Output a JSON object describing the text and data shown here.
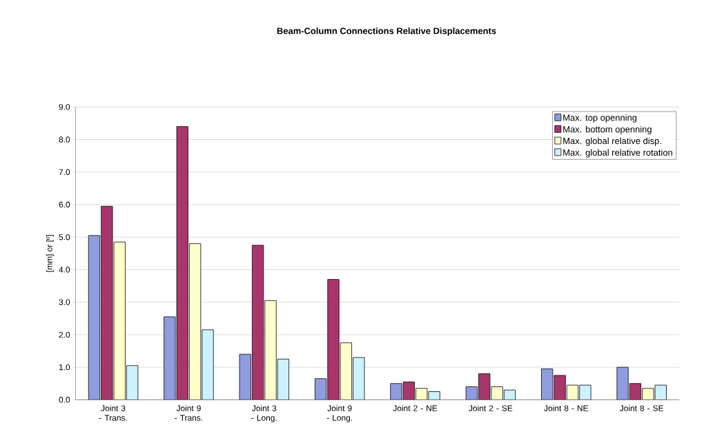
{
  "chart_data": {
    "type": "bar",
    "title": "Beam-Column Connections Relative Displacements",
    "ylabel": "[mm] or [º]",
    "categories": [
      "Joint 3 - Trans.",
      "Joint 9 - Trans.",
      "Joint 3 - Long.",
      "Joint 9 - Long.",
      "Joint 2 - NE",
      "Joint 2 - SE",
      "Joint 8 - NE",
      "Joint 8 - SE"
    ],
    "series": [
      {
        "name": "Max. top openning",
        "color": "#8f9ce0",
        "values": [
          5.05,
          2.55,
          1.4,
          0.65,
          0.5,
          0.4,
          0.95,
          1.0
        ]
      },
      {
        "name": "Max. bottom openning",
        "color": "#a8366a",
        "values": [
          5.95,
          8.4,
          4.75,
          3.7,
          0.55,
          0.8,
          0.75,
          0.5
        ]
      },
      {
        "name": "Max. global relative disp.",
        "color": "#ffffcc",
        "values": [
          4.85,
          4.8,
          3.05,
          1.75,
          0.35,
          0.4,
          0.45,
          0.35
        ]
      },
      {
        "name": "Max. global relative rotation",
        "color": "#ccf2ff",
        "values": [
          1.05,
          2.15,
          1.25,
          1.3,
          0.25,
          0.3,
          0.45,
          0.45
        ]
      }
    ],
    "ylim": [
      0,
      9
    ],
    "yticks": [
      {
        "value": 0,
        "label": "0.0"
      },
      {
        "value": 1,
        "label": "1.0"
      },
      {
        "value": 2,
        "label": "2.0"
      },
      {
        "value": 3,
        "label": "3.0"
      },
      {
        "value": 4,
        "label": "4.0"
      },
      {
        "value": 5,
        "label": "5.0"
      },
      {
        "value": 6,
        "label": "6.0"
      },
      {
        "value": 7,
        "label": "7.0"
      },
      {
        "value": 8,
        "label": "8.0"
      },
      {
        "value": 9,
        "label": "9.0"
      }
    ],
    "grid": "y",
    "legend": "top right"
  }
}
